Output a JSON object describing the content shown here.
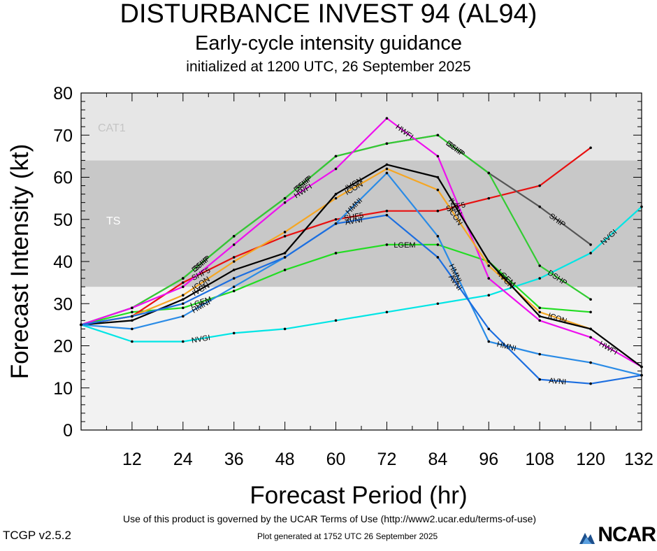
{
  "header": {
    "title": "DISTURBANCE INVEST 94 (AL94)",
    "subtitle": "Early-cycle intensity guidance",
    "initialized": "initialized at 1200 UTC, 26 September 2025"
  },
  "footer": {
    "terms": "Use of this product is governed by the UCAR Terms of Use (http://www2.ucar.edu/terms-of-use)",
    "generated": "Plot generated at 1752 UTC   26 September 2025",
    "version": "TCGP v2.5.2",
    "logo": "NCAR"
  },
  "chart_data": {
    "type": "line",
    "xlabel": "Forecast Period (hr)",
    "ylabel": "Forecast Intensity (kt)",
    "xlim": [
      0,
      132
    ],
    "ylim": [
      0,
      80
    ],
    "xticks": [
      12,
      24,
      36,
      48,
      60,
      72,
      84,
      96,
      108,
      120,
      132
    ],
    "yticks": [
      0,
      10,
      20,
      30,
      40,
      50,
      60,
      70,
      80
    ],
    "bands": [
      {
        "name": "TS",
        "from": 34,
        "to": 64,
        "color": "#c8c8c8"
      },
      {
        "name": "CAT1",
        "from": 64,
        "to": 83,
        "color": "#e6e6e6"
      }
    ],
    "series": [
      {
        "name": "NVGI",
        "color": "#00e5e5",
        "x": [
          0,
          12,
          24,
          36,
          48,
          60,
          72,
          84,
          96,
          108,
          120,
          132
        ],
        "y": [
          25,
          21,
          21,
          23,
          24,
          26,
          28,
          30,
          32,
          36,
          42,
          53
        ]
      },
      {
        "name": "LGEM",
        "color": "#22dd22",
        "x": [
          0,
          12,
          24,
          36,
          48,
          60,
          72,
          84,
          96,
          108,
          120
        ],
        "y": [
          25,
          28,
          29,
          33,
          38,
          42,
          44,
          44,
          40,
          29,
          28
        ]
      },
      {
        "name": "SHF5",
        "color": "#e81010",
        "x": [
          0,
          12,
          24,
          36,
          48,
          60,
          72,
          84,
          96,
          108,
          120
        ],
        "y": [
          25,
          27,
          35,
          41,
          46,
          50,
          52,
          52,
          55,
          58,
          67
        ]
      },
      {
        "name": "SHIP",
        "color": "#555555",
        "x": [
          0,
          12,
          24,
          36,
          48,
          60,
          72,
          84,
          96,
          108,
          120
        ],
        "y": [
          25,
          29,
          36,
          46,
          55,
          65,
          68,
          70,
          61,
          53,
          44
        ]
      },
      {
        "name": "DSHP",
        "color": "#33cc33",
        "x": [
          0,
          12,
          24,
          36,
          48,
          60,
          72,
          84,
          96,
          108,
          120
        ],
        "y": [
          25,
          29,
          36,
          46,
          55,
          65,
          68,
          70,
          61,
          39,
          31
        ]
      },
      {
        "name": "HWFI",
        "color": "#ee10ee",
        "x": [
          0,
          12,
          24,
          36,
          48,
          60,
          72,
          84,
          96,
          108,
          120,
          132
        ],
        "y": [
          25,
          29,
          34,
          44,
          54,
          62,
          74,
          65,
          36,
          26,
          22,
          15
        ]
      },
      {
        "name": "ICON",
        "color": "#f5a623",
        "x": [
          0,
          12,
          24,
          36,
          48,
          60,
          72,
          84,
          96,
          108,
          120
        ],
        "y": [
          25,
          27,
          32,
          40,
          47,
          55,
          62,
          57,
          39,
          28,
          24
        ]
      },
      {
        "name": "IVCN",
        "color": "#000000",
        "x": [
          0,
          12,
          24,
          36,
          48,
          60,
          72,
          84,
          96,
          108,
          120,
          132
        ],
        "y": [
          25,
          26,
          31,
          38,
          42,
          56,
          63,
          60,
          40,
          27,
          24,
          15
        ]
      },
      {
        "name": "HMNI",
        "color": "#2a8be6",
        "x": [
          0,
          12,
          24,
          36,
          48,
          60,
          72,
          84,
          96,
          108,
          120,
          132
        ],
        "y": [
          25,
          24,
          27,
          34,
          41,
          49,
          61,
          46,
          21,
          18,
          16,
          13
        ]
      },
      {
        "name": "AVNI",
        "color": "#1c6ee0",
        "x": [
          0,
          12,
          24,
          36,
          48,
          60,
          72,
          84,
          96,
          108,
          120,
          132
        ],
        "y": [
          25,
          27,
          30,
          36,
          41,
          49,
          51,
          41,
          24,
          12,
          11,
          13
        ]
      }
    ],
    "series_labels": [
      {
        "series": "NVGI",
        "at": [
          24,
          120
        ]
      },
      {
        "series": "LGEM",
        "at": [
          24,
          72,
          96
        ]
      },
      {
        "series": "SHF5",
        "at": [
          24,
          60,
          84
        ]
      },
      {
        "series": "SHIP",
        "at": [
          24,
          48,
          84,
          108
        ]
      },
      {
        "series": "DSHP",
        "at": [
          24,
          48,
          84,
          108
        ]
      },
      {
        "series": "HWFI",
        "at": [
          48,
          72,
          120
        ]
      },
      {
        "series": "ICON",
        "at": [
          24,
          60,
          84,
          108
        ]
      },
      {
        "series": "IVCN",
        "at": [
          24,
          60,
          84,
          96
        ]
      },
      {
        "series": "HMNI",
        "at": [
          24,
          60,
          84,
          96
        ]
      },
      {
        "series": "AVNI",
        "at": [
          60,
          84,
          108
        ]
      }
    ]
  }
}
